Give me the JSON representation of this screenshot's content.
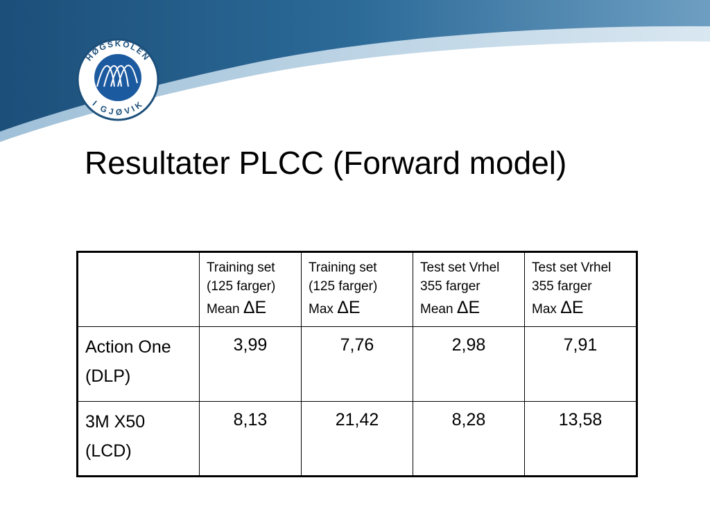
{
  "logo": {
    "top_text": "HØGSKOLEN",
    "bottom_text": "I GJØVIK"
  },
  "title": "Resultater PLCC (Forward model)",
  "table": {
    "header": [
      {
        "line1": "Training set",
        "line2": "(125 farger)",
        "stat": "Mean",
        "symbol": "ΔE"
      },
      {
        "line1": "Training set",
        "line2": "(125 farger)",
        "stat": "Max",
        "symbol": "ΔE"
      },
      {
        "line1": "Test set Vrhel",
        "line2": "355 farger",
        "stat": "Mean",
        "symbol": "ΔE"
      },
      {
        "line1": "Test set Vrhel",
        "line2": "355 farger",
        "stat": "Max",
        "symbol": "ΔE"
      }
    ],
    "rows": [
      {
        "label": [
          "Action One",
          "(DLP)"
        ],
        "cells": [
          "3,99",
          "7,76",
          "2,98",
          "7,91"
        ]
      },
      {
        "label": [
          "3M X50",
          "(LCD)"
        ],
        "cells": [
          "8,13",
          "21,42",
          "8,28",
          "13,58"
        ]
      }
    ]
  }
}
